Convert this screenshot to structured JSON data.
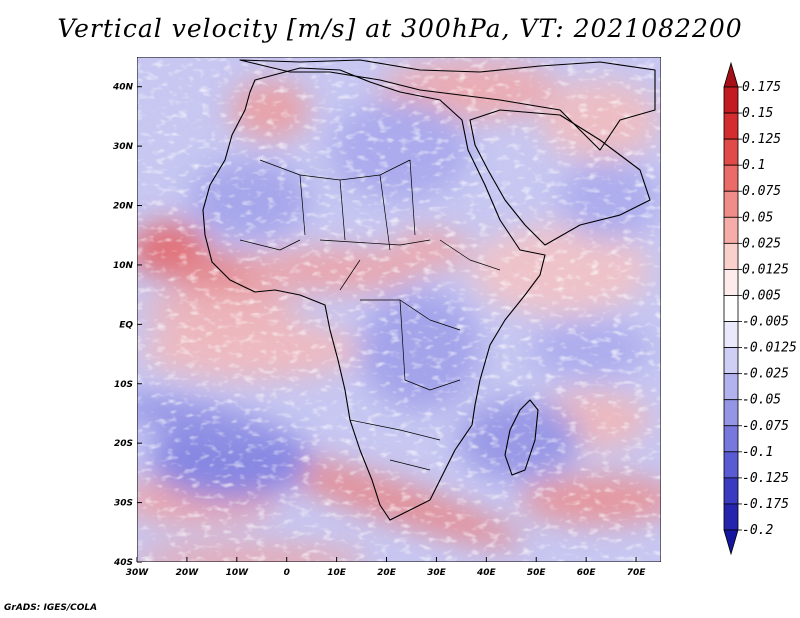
{
  "title": "Vertical velocity [m/s] at 300hPa, VT: 2021082200",
  "credit": "GrADS: IGES/COLA",
  "map": {
    "lon_range": [
      -30,
      75
    ],
    "lat_range": [
      -40,
      45
    ],
    "lon_ticks": [
      {
        "lon": -30,
        "label": "30W"
      },
      {
        "lon": -20,
        "label": "20W"
      },
      {
        "lon": -10,
        "label": "10W"
      },
      {
        "lon": 0,
        "label": "0"
      },
      {
        "lon": 10,
        "label": "10E"
      },
      {
        "lon": 20,
        "label": "20E"
      },
      {
        "lon": 30,
        "label": "30E"
      },
      {
        "lon": 40,
        "label": "40E"
      },
      {
        "lon": 50,
        "label": "50E"
      },
      {
        "lon": 60,
        "label": "60E"
      },
      {
        "lon": 70,
        "label": "70E"
      }
    ],
    "lat_ticks": [
      {
        "lat": 40,
        "label": "40N"
      },
      {
        "lat": 30,
        "label": "30N"
      },
      {
        "lat": 20,
        "label": "20N"
      },
      {
        "lat": 10,
        "label": "10N"
      },
      {
        "lat": 0,
        "label": "EQ"
      },
      {
        "lat": -10,
        "label": "10S"
      },
      {
        "lat": -20,
        "label": "20S"
      },
      {
        "lat": -30,
        "label": "30S"
      },
      {
        "lat": -40,
        "label": "40S"
      }
    ]
  },
  "colorbar": {
    "levels": [
      "0.175",
      "0.15",
      "0.125",
      "0.1",
      "0.075",
      "0.05",
      "0.025",
      "0.0125",
      "0.005",
      "-0.005",
      "-0.0125",
      "-0.025",
      "-0.05",
      "-0.075",
      "-0.1",
      "-0.125",
      "-0.175",
      "-0.2"
    ],
    "colors": [
      "#a50f15",
      "#c21b22",
      "#d42d2f",
      "#e04a48",
      "#ea6b67",
      "#f18d89",
      "#f6ada9",
      "#fad0cd",
      "#fdeceb",
      "#ffffff",
      "#e9e9fb",
      "#cfcff5",
      "#b2b2ee",
      "#9595e6",
      "#7777dd",
      "#5a5ad2",
      "#3b3bc2",
      "#2424ad",
      "#1515a0"
    ]
  }
}
